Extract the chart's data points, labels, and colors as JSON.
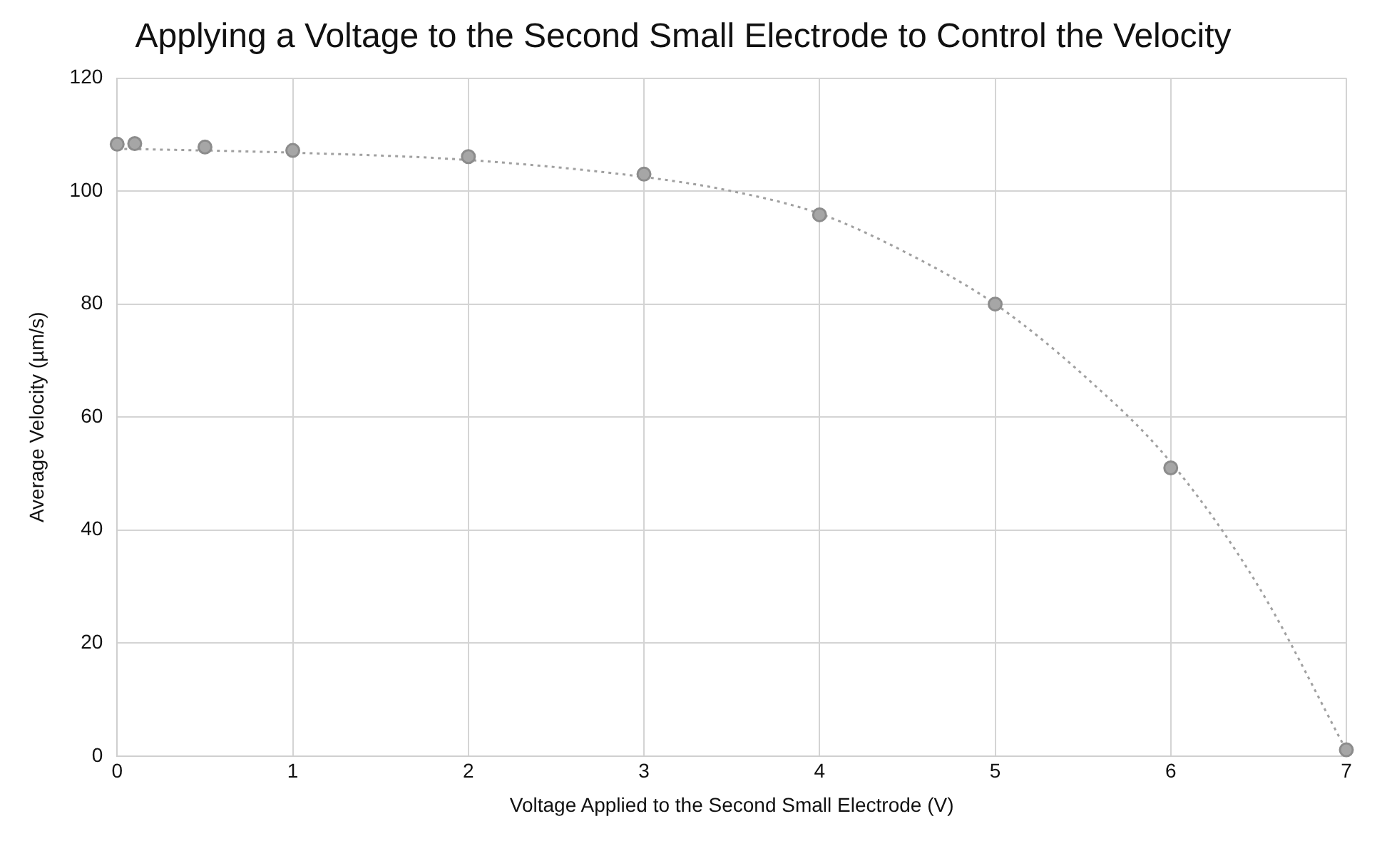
{
  "chart_data": {
    "type": "scatter",
    "title": "Applying a Voltage to the Second Small Electrode to Control the Velocity",
    "xlabel": "Voltage Applied to the Second Small Electrode (V)",
    "ylabel": "Average Velocity (µm/s)",
    "xlim": [
      0,
      7
    ],
    "xticks": [
      0,
      1,
      2,
      3,
      4,
      5,
      6,
      7
    ],
    "ylim": [
      0,
      120
    ],
    "yticks": [
      0,
      20,
      40,
      60,
      80,
      100,
      120
    ],
    "grid": true,
    "legend": false,
    "marker": "circle",
    "series": [
      {
        "color": "#a6a6a6",
        "x": [
          0,
          0.1,
          0.5,
          1,
          2,
          3,
          4,
          5,
          6,
          7
        ],
        "values": [
          108.3,
          108.4,
          107.8,
          107.2,
          106.1,
          103,
          95.8,
          80,
          51,
          1.1
        ]
      },
      {
        "type": "line",
        "color": "#a0a0a0",
        "line_style": "dotted",
        "marker": "none",
        "x": [
          0,
          1,
          2,
          3,
          3.5,
          4,
          4.5,
          5,
          5.5,
          6,
          6.5,
          7
        ],
        "values": [
          107.5,
          106.8,
          105.5,
          102.5,
          100,
          96,
          89,
          80,
          67.5,
          52,
          30,
          1
        ]
      }
    ]
  }
}
